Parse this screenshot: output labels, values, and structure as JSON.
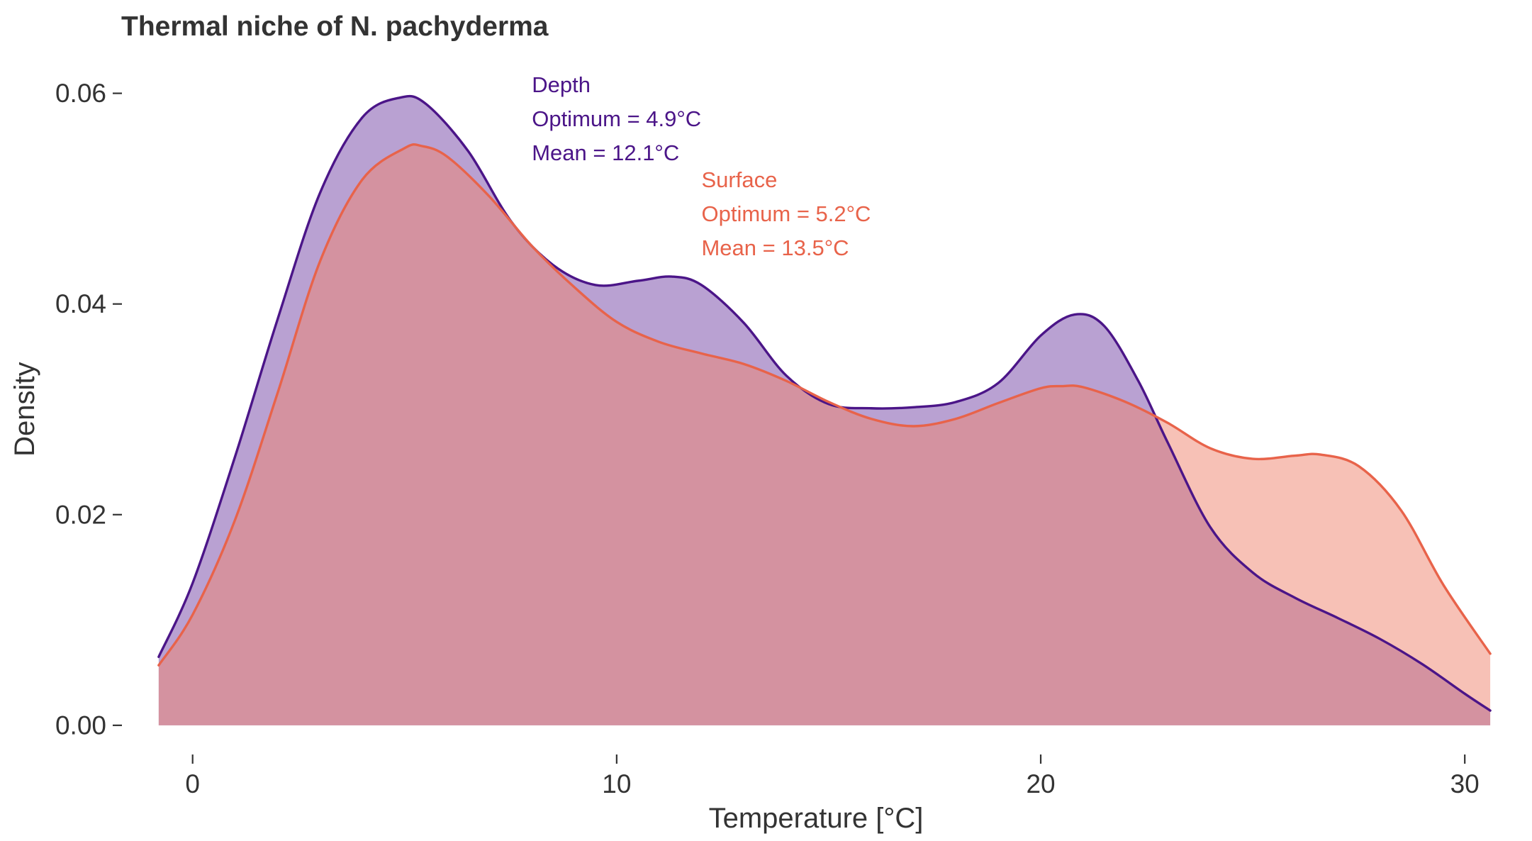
{
  "chart_data": {
    "type": "area",
    "title": "Thermal niche of N. pachyderma",
    "xlabel": "Temperature [°C]",
    "ylabel": "Density",
    "xlim": [
      -1.6,
      31.0
    ],
    "ylim": [
      -0.0025,
      0.0628
    ],
    "x_ticks": [
      0,
      10,
      20,
      30
    ],
    "x_tick_labels": [
      "0",
      "10",
      "20",
      "30"
    ],
    "y_ticks": [
      0.0,
      0.02,
      0.04,
      0.06
    ],
    "y_tick_labels": [
      "0.00",
      "0.02",
      "0.04",
      "0.06"
    ],
    "grid": false,
    "legend": "none",
    "series": [
      {
        "name": "Depth",
        "color": "#4b1588",
        "fill": "#b9a1d2",
        "fill_opacity": 1.0,
        "points": [
          [
            -0.8,
            0.0065
          ],
          [
            0.0,
            0.0135
          ],
          [
            1.0,
            0.0255
          ],
          [
            2.0,
            0.0385
          ],
          [
            3.0,
            0.0505
          ],
          [
            4.0,
            0.0577
          ],
          [
            4.9,
            0.0596
          ],
          [
            5.5,
            0.059
          ],
          [
            6.5,
            0.0545
          ],
          [
            7.5,
            0.0479
          ],
          [
            8.5,
            0.0437
          ],
          [
            9.5,
            0.0418
          ],
          [
            10.5,
            0.0422
          ],
          [
            11.3,
            0.0426
          ],
          [
            12.0,
            0.0418
          ],
          [
            13.0,
            0.0382
          ],
          [
            14.0,
            0.0332
          ],
          [
            15.0,
            0.0305
          ],
          [
            16.0,
            0.0301
          ],
          [
            17.0,
            0.0302
          ],
          [
            18.0,
            0.0307
          ],
          [
            19.0,
            0.0325
          ],
          [
            20.0,
            0.037
          ],
          [
            20.8,
            0.039
          ],
          [
            21.5,
            0.0379
          ],
          [
            22.3,
            0.0327
          ],
          [
            23.0,
            0.0268
          ],
          [
            24.0,
            0.0188
          ],
          [
            25.0,
            0.0145
          ],
          [
            26.0,
            0.0121
          ],
          [
            27.0,
            0.0102
          ],
          [
            28.0,
            0.0082
          ],
          [
            29.0,
            0.0058
          ],
          [
            30.0,
            0.003
          ],
          [
            30.6,
            0.0014
          ]
        ]
      },
      {
        "name": "Surface",
        "color": "#e8634a",
        "fill": "#f0836e",
        "fill_opacity": 0.5,
        "points": [
          [
            -0.8,
            0.0057
          ],
          [
            0.0,
            0.0105
          ],
          [
            1.0,
            0.0195
          ],
          [
            2.0,
            0.0315
          ],
          [
            3.0,
            0.044
          ],
          [
            4.0,
            0.0518
          ],
          [
            5.0,
            0.0548
          ],
          [
            5.4,
            0.055
          ],
          [
            6.0,
            0.054
          ],
          [
            7.0,
            0.0502
          ],
          [
            8.0,
            0.0455
          ],
          [
            9.0,
            0.0416
          ],
          [
            10.0,
            0.0383
          ],
          [
            11.0,
            0.0364
          ],
          [
            12.0,
            0.0353
          ],
          [
            13.0,
            0.0343
          ],
          [
            14.0,
            0.0327
          ],
          [
            15.0,
            0.0307
          ],
          [
            16.0,
            0.0291
          ],
          [
            17.0,
            0.0284
          ],
          [
            18.0,
            0.0291
          ],
          [
            19.0,
            0.0306
          ],
          [
            20.0,
            0.032
          ],
          [
            20.5,
            0.0322
          ],
          [
            21.0,
            0.0321
          ],
          [
            22.0,
            0.0307
          ],
          [
            23.0,
            0.0287
          ],
          [
            24.0,
            0.0263
          ],
          [
            25.0,
            0.0253
          ],
          [
            26.0,
            0.0256
          ],
          [
            26.6,
            0.0257
          ],
          [
            27.5,
            0.0246
          ],
          [
            28.5,
            0.0204
          ],
          [
            29.5,
            0.0133
          ],
          [
            30.6,
            0.0068
          ]
        ]
      }
    ],
    "annotations": [
      {
        "series": "Depth",
        "color": "#4b1588",
        "x": 8.0,
        "y_top": 0.0601,
        "lines": [
          "Depth",
          "Optimum = 4.9°C",
          "Mean = 12.1°C"
        ]
      },
      {
        "series": "Surface",
        "color": "#e8634a",
        "x": 12.0,
        "y_top": 0.0511,
        "lines": [
          "Surface",
          "Optimum = 5.2°C",
          "Mean = 13.5°C"
        ]
      }
    ]
  }
}
